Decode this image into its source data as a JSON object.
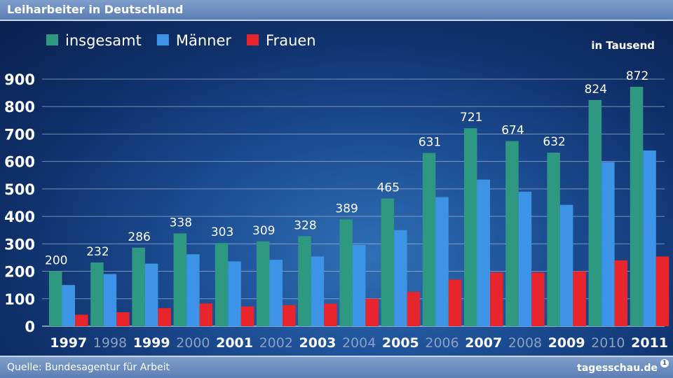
{
  "header": {
    "title": "Leiharbeiter in Deutschland"
  },
  "footer": {
    "source": "Quelle: Bundesagentur für Arbeit",
    "brand": "tagesschau.de"
  },
  "chart_data": {
    "type": "bar",
    "title": "Leiharbeiter in Deutschland",
    "unit_label": "in Tausend",
    "categories": [
      "1997",
      "1998",
      "1999",
      "2000",
      "2001",
      "2002",
      "2003",
      "2004",
      "2005",
      "2006",
      "2007",
      "2008",
      "2009",
      "2010",
      "2011"
    ],
    "highlighted_categories": [
      "1997",
      "1999",
      "2001",
      "2003",
      "2005",
      "2007",
      "2009",
      "2011"
    ],
    "series": [
      {
        "name": "insgesamt",
        "color": "#2e9880",
        "values": [
          200,
          232,
          286,
          338,
          303,
          309,
          328,
          389,
          465,
          631,
          721,
          674,
          632,
          824,
          872
        ],
        "data_labels": [
          "200",
          "232",
          "286",
          "338",
          "303",
          "309",
          "328",
          "389",
          "465",
          "631",
          "721",
          "674",
          "632",
          "824",
          "872"
        ]
      },
      {
        "name": "Männer",
        "color": "#3d94e6",
        "values": [
          150,
          190,
          228,
          262,
          236,
          242,
          254,
          296,
          350,
          470,
          534,
          490,
          442,
          598,
          640
        ]
      },
      {
        "name": "Frauen",
        "color": "#e8242d",
        "values": [
          42,
          51,
          66,
          83,
          72,
          77,
          82,
          100,
          125,
          170,
          196,
          196,
          200,
          240,
          254
        ]
      }
    ],
    "ylim": [
      0,
      900
    ],
    "yticks": [
      "0",
      "100",
      "200",
      "300",
      "400",
      "500",
      "600",
      "700",
      "800",
      "900"
    ],
    "grid": true,
    "legend_position": "top-left",
    "colors": {
      "grid": "#b8c8e0",
      "axis_text": "#ffffff",
      "tick_dim": "#8aa0c4"
    }
  }
}
